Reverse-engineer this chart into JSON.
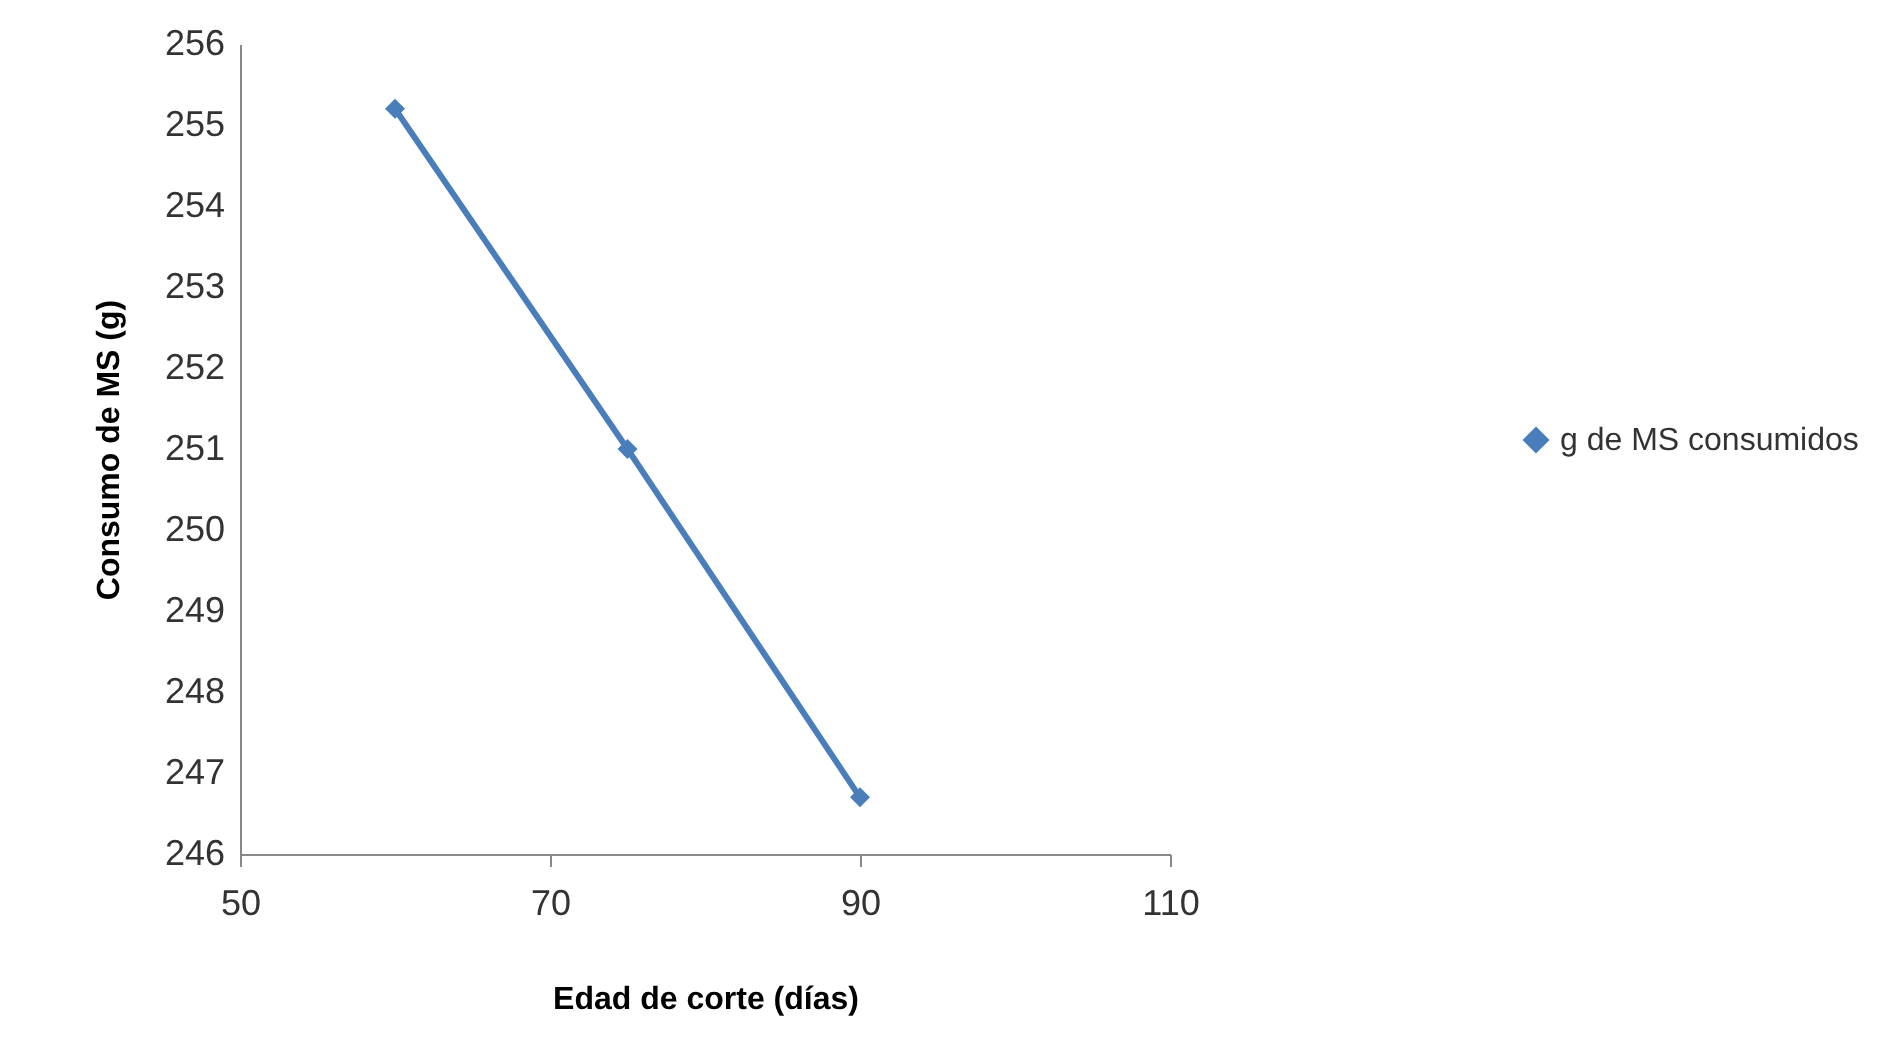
{
  "chart_data": {
    "type": "line",
    "xlabel": "Edad de corte (días)",
    "ylabel": "Consumo de MS (g)",
    "x": [
      60,
      75,
      90
    ],
    "series": [
      {
        "name": "g de MS consumidos",
        "color": "#4a7ebb",
        "values": [
          255.2,
          251.0,
          246.7
        ]
      }
    ],
    "xlim": [
      50,
      110
    ],
    "xticks": [
      50,
      70,
      90,
      110
    ],
    "ylim": [
      246,
      256
    ],
    "yticks": [
      246,
      247,
      248,
      249,
      250,
      251,
      252,
      253,
      254,
      255,
      256
    ],
    "grid": false,
    "legend": "right",
    "marker": "diamond",
    "line_style": "solid"
  }
}
